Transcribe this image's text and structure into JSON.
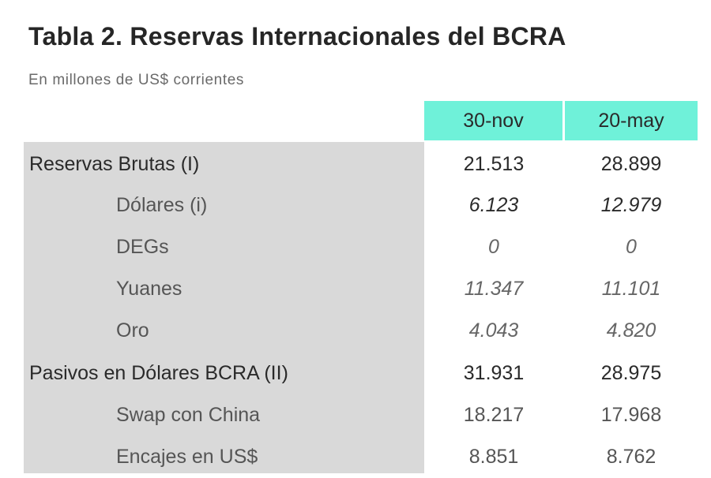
{
  "title": "Tabla 2. Reservas Internacionales del BCRA",
  "subtitle": "En millones de US$ corrientes",
  "columns": [
    "30-nov",
    "20-may"
  ],
  "header_color": "#6ff1d9",
  "rows": [
    {
      "label": "Reservas Brutas (I)",
      "values": [
        "21.513",
        "28.899"
      ]
    },
    {
      "label": "Dólares (i)",
      "values": [
        "6.123",
        "12.979"
      ]
    },
    {
      "label": "DEGs",
      "values": [
        "0",
        "0"
      ]
    },
    {
      "label": "Yuanes",
      "values": [
        "11.347",
        "11.101"
      ]
    },
    {
      "label": "Oro",
      "values": [
        "4.043",
        "4.820"
      ]
    },
    {
      "label": "Pasivos en Dólares BCRA (II)",
      "values": [
        "31.931",
        "28.975"
      ]
    },
    {
      "label": "Swap con China",
      "values": [
        "18.217",
        "17.968"
      ]
    },
    {
      "label": "Encajes en US$",
      "values": [
        "8.851",
        "8.762"
      ]
    }
  ]
}
